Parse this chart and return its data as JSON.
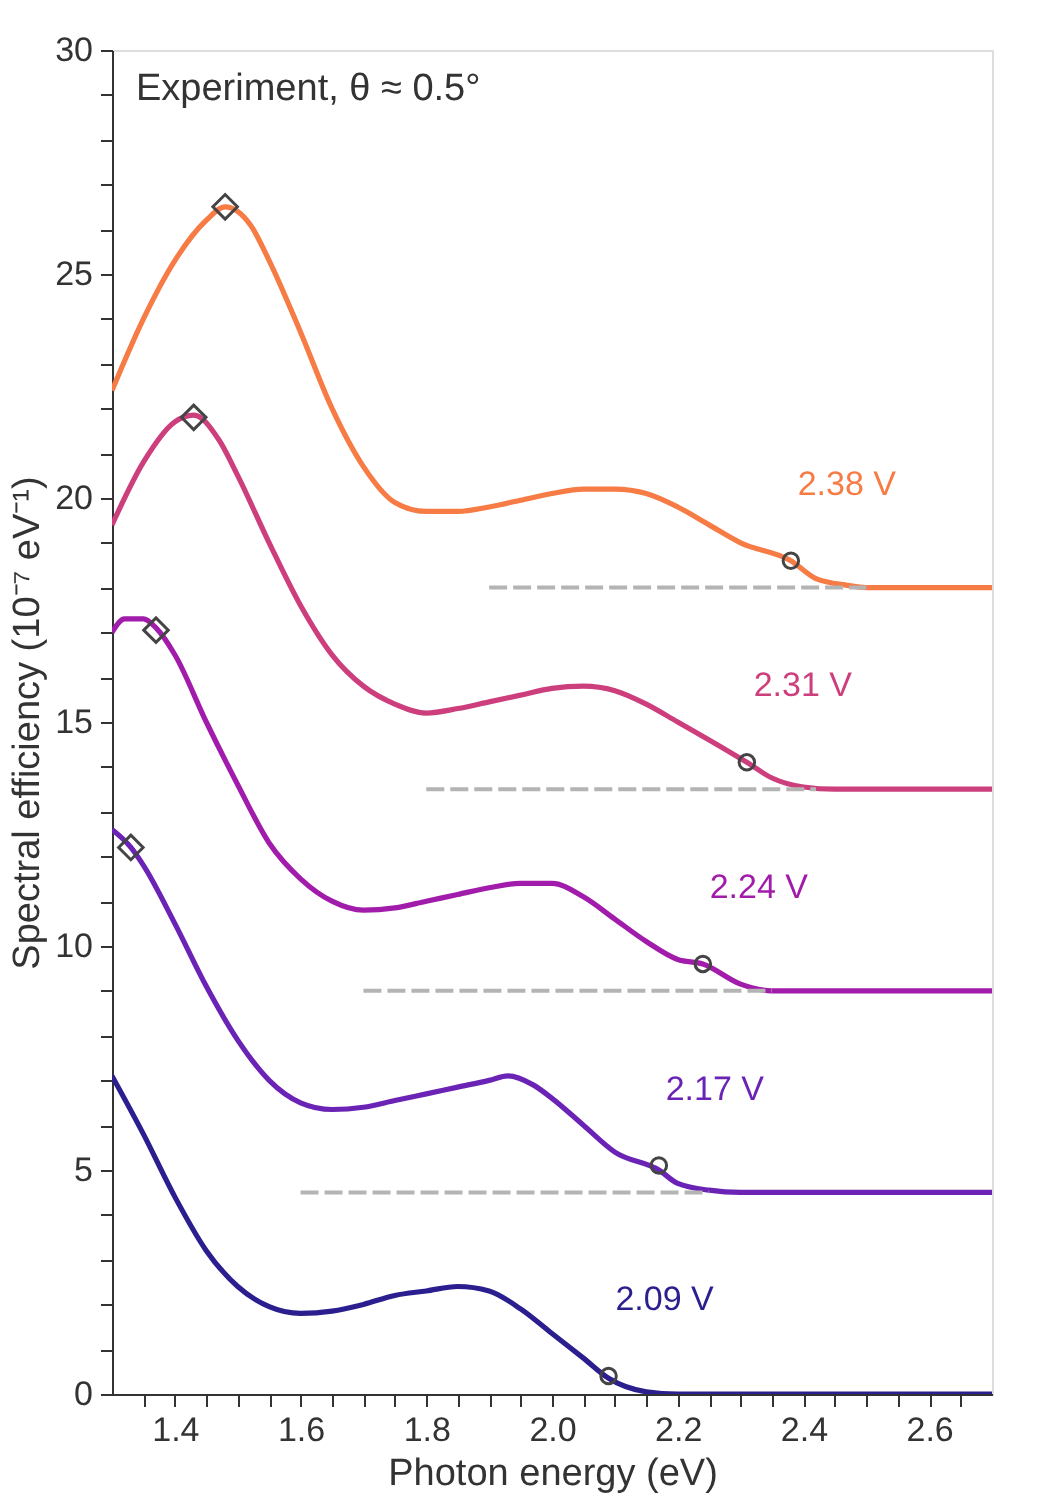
{
  "chart_data": {
    "type": "line",
    "xlabel": "Photon energy (eV)",
    "ylabel": "Spectral efficiency (10⁻⁷ eV⁻¹)",
    "annotations": [
      "Experiment, θ ≈ 0.5°"
    ],
    "xlim": [
      1.3,
      2.7
    ],
    "ylim": [
      0,
      30
    ],
    "xticks": [
      {
        "value": 1.35,
        "label": null
      },
      1.4,
      {
        "value": 1.45,
        "label": null
      },
      {
        "value": 1.5,
        "label": null
      },
      {
        "value": 1.55,
        "label": null
      },
      1.6,
      {
        "value": 1.65,
        "label": null
      },
      {
        "value": 1.7,
        "label": null
      },
      {
        "value": 1.75,
        "label": null
      },
      1.8,
      {
        "value": 1.85,
        "label": null
      },
      {
        "value": 1.9,
        "label": null
      },
      {
        "value": 1.95,
        "label": null
      },
      {
        "value": 2,
        "label": "2.0"
      },
      {
        "value": 2.05,
        "label": null
      },
      {
        "value": 2.1,
        "label": null
      },
      {
        "value": 2.15,
        "label": null
      },
      2.2,
      {
        "value": 2.25,
        "label": null
      },
      {
        "value": 2.3,
        "label": null
      },
      {
        "value": 2.35,
        "label": null
      },
      2.4,
      {
        "value": 2.45,
        "label": null
      },
      {
        "value": 2.5,
        "label": null
      },
      {
        "value": 2.55,
        "label": null
      },
      2.6,
      {
        "value": 2.65,
        "label": null
      }
    ],
    "yticks": [
      0,
      {
        "value": 1,
        "label": null
      },
      {
        "value": 2,
        "label": null
      },
      {
        "value": 3,
        "label": null
      },
      {
        "value": 4,
        "label": null
      },
      5,
      {
        "value": 6,
        "label": null
      },
      {
        "value": 7,
        "label": null
      },
      {
        "value": 8,
        "label": null
      },
      {
        "value": 9,
        "label": null
      },
      10,
      {
        "value": 11,
        "label": null
      },
      {
        "value": 12,
        "label": null
      },
      {
        "value": 13,
        "label": null
      },
      {
        "value": 14,
        "label": null
      },
      15,
      {
        "value": 16,
        "label": null
      },
      {
        "value": 17,
        "label": null
      },
      {
        "value": 18,
        "label": null
      },
      {
        "value": 19,
        "label": null
      },
      20,
      {
        "value": 21,
        "label": null
      },
      {
        "value": 22,
        "label": null
      },
      {
        "value": 23,
        "label": null
      },
      {
        "value": 24,
        "label": null
      },
      25,
      {
        "value": 26,
        "label": null
      },
      {
        "value": 27,
        "label": null
      },
      {
        "value": 28,
        "label": null
      },
      {
        "value": 29,
        "label": null
      },
      30
    ],
    "grid": false,
    "line_style": "solid",
    "series": [
      {
        "name": "2.09 V",
        "color": "#2b1f8f",
        "x": [
          1.3,
          1.35,
          1.4,
          1.45,
          1.5,
          1.55,
          1.6,
          1.65,
          1.7,
          1.75,
          1.8,
          1.85,
          1.9,
          1.95,
          2.0,
          2.05,
          2.09,
          2.15,
          2.2,
          2.7
        ],
        "values": [
          7.1,
          5.8,
          4.4,
          3.2,
          2.4,
          1.95,
          1.8,
          1.85,
          2.0,
          2.2,
          2.3,
          2.4,
          2.3,
          1.9,
          1.35,
          0.8,
          0.35,
          0.05,
          0,
          0
        ]
      },
      {
        "name": "2.17 V",
        "color": "#6b23b5",
        "x": [
          1.3,
          1.33,
          1.35,
          1.4,
          1.45,
          1.5,
          1.55,
          1.6,
          1.65,
          1.7,
          1.75,
          1.8,
          1.85,
          1.9,
          1.93,
          1.97,
          2.0,
          2.05,
          2.1,
          2.17,
          2.2,
          2.25,
          2.3,
          2.7
        ],
        "values": [
          12.6,
          12.2,
          11.8,
          10.5,
          9.1,
          7.9,
          7.0,
          6.5,
          6.35,
          6.4,
          6.55,
          6.7,
          6.85,
          7.0,
          7.1,
          6.9,
          6.6,
          6.0,
          5.4,
          5.0,
          4.7,
          4.55,
          4.5,
          4.5
        ]
      },
      {
        "name": "2.24 V",
        "color": "#a21cab",
        "x": [
          1.3,
          1.32,
          1.35,
          1.37,
          1.4,
          1.45,
          1.5,
          1.55,
          1.6,
          1.65,
          1.7,
          1.75,
          1.8,
          1.85,
          1.9,
          1.95,
          2.0,
          2.05,
          2.1,
          2.15,
          2.2,
          2.24,
          2.3,
          2.35,
          2.7
        ],
        "values": [
          17.0,
          17.3,
          17.3,
          17.1,
          16.5,
          15.0,
          13.6,
          12.3,
          11.5,
          11.0,
          10.8,
          10.85,
          11.0,
          11.15,
          11.3,
          11.4,
          11.4,
          11.1,
          10.6,
          10.1,
          9.7,
          9.6,
          9.15,
          9.0,
          9.0
        ]
      },
      {
        "name": "2.31 V",
        "color": "#cc3f7c",
        "x": [
          1.3,
          1.35,
          1.4,
          1.43,
          1.47,
          1.5,
          1.55,
          1.6,
          1.65,
          1.7,
          1.75,
          1.8,
          1.85,
          1.9,
          1.95,
          2.0,
          2.05,
          2.1,
          2.15,
          2.2,
          2.25,
          2.31,
          2.35,
          2.4,
          2.45,
          2.7
        ],
        "values": [
          19.4,
          20.8,
          21.7,
          21.85,
          21.3,
          20.5,
          19.0,
          17.6,
          16.5,
          15.8,
          15.4,
          15.2,
          15.3,
          15.45,
          15.6,
          15.75,
          15.8,
          15.7,
          15.4,
          15.0,
          14.6,
          14.1,
          13.75,
          13.55,
          13.5,
          13.5
        ]
      },
      {
        "name": "2.38 V",
        "color": "#f77b45",
        "x": [
          1.3,
          1.35,
          1.4,
          1.45,
          1.48,
          1.52,
          1.55,
          1.6,
          1.65,
          1.7,
          1.75,
          1.8,
          1.85,
          1.9,
          1.95,
          2.0,
          2.05,
          2.1,
          2.15,
          2.2,
          2.25,
          2.3,
          2.38,
          2.42,
          2.47,
          2.5,
          2.7
        ],
        "values": [
          22.4,
          24.0,
          25.3,
          26.2,
          26.5,
          26.1,
          25.3,
          23.7,
          22.0,
          20.7,
          19.9,
          19.7,
          19.7,
          19.8,
          19.95,
          20.1,
          20.2,
          20.2,
          20.1,
          19.8,
          19.4,
          19.0,
          18.6,
          18.2,
          18.05,
          18.0,
          18.0
        ]
      },
      {
        "type": "line",
        "color": "#b4b4b4",
        "line_style": "dashed",
        "x": [
          1.6,
          2.25
        ],
        "values": [
          4.5,
          4.5
        ]
      },
      {
        "type": "line",
        "color": "#b4b4b4",
        "line_style": "dashed",
        "x": [
          1.7,
          2.35
        ],
        "values": [
          9.0,
          9.0
        ]
      },
      {
        "type": "line",
        "color": "#b4b4b4",
        "line_style": "dashed",
        "x": [
          1.8,
          2.42
        ],
        "values": [
          13.5,
          13.5
        ]
      },
      {
        "type": "line",
        "color": "#b4b4b4",
        "line_style": "dashed",
        "x": [
          1.9,
          2.5
        ],
        "values": [
          18.0,
          18.0
        ]
      },
      {
        "type": "scatter",
        "marker": "circle",
        "color": "#444444",
        "x": [
          2.09,
          2.17,
          2.24,
          2.31,
          2.38
        ],
        "values": [
          0.4,
          5.1,
          9.6,
          14.1,
          18.6
        ]
      },
      {
        "type": "scatter",
        "marker": "diamond",
        "color": "#444444",
        "x": [
          1.33,
          1.37,
          1.43,
          1.48
        ],
        "values": [
          12.2,
          17.05,
          21.8,
          26.5
        ]
      }
    ]
  }
}
